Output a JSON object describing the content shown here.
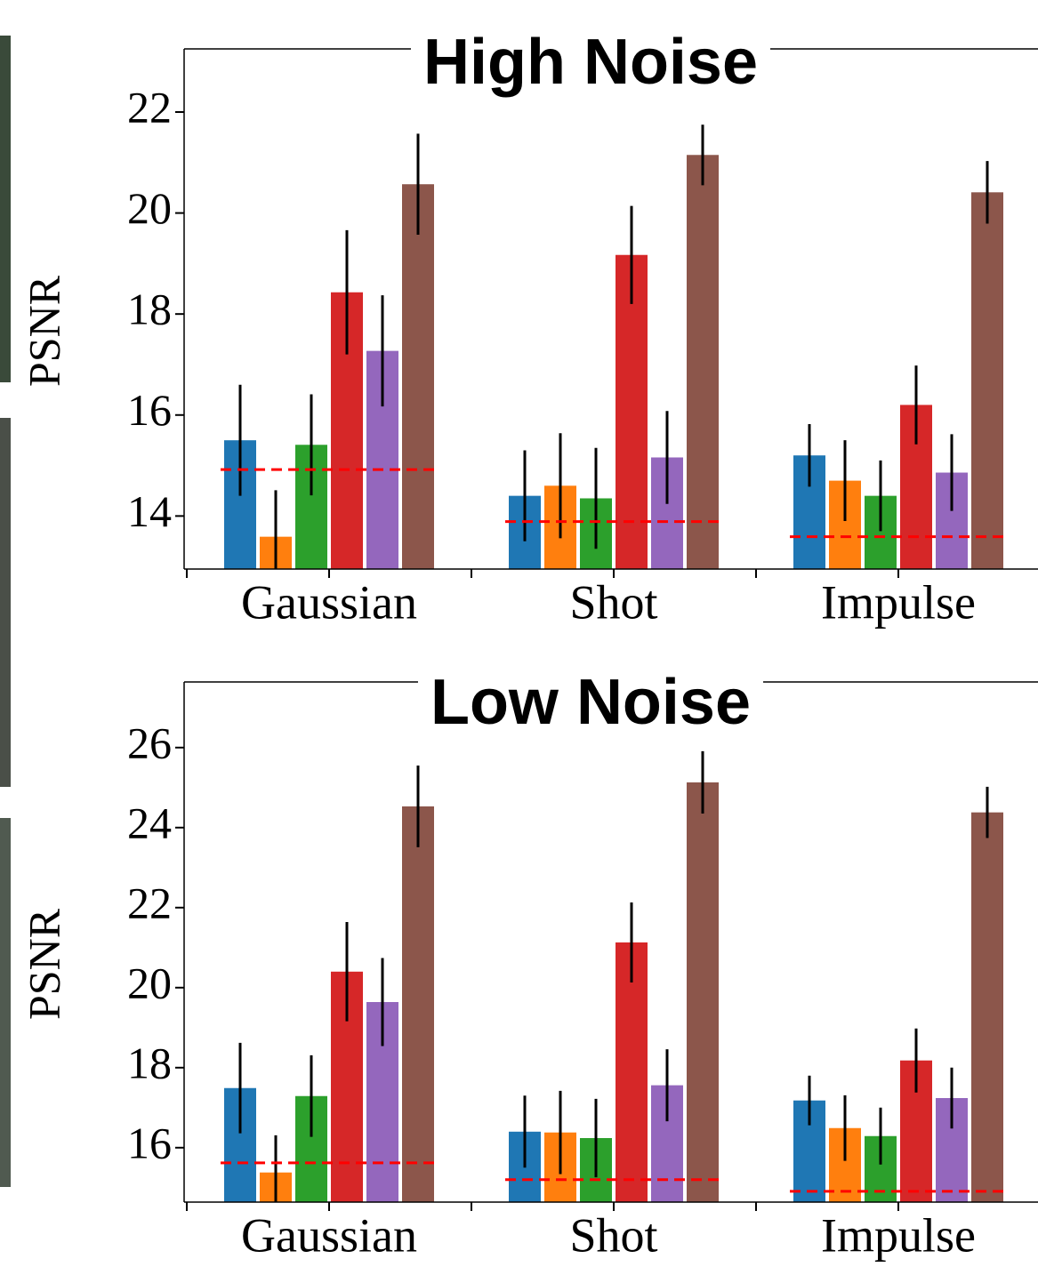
{
  "chart_data": [
    {
      "type": "bar",
      "title": "High Noise",
      "ylabel": "PSNR",
      "categories": [
        "Gaussian",
        "Shot",
        "Impulse"
      ],
      "series": [
        {
          "color": "#1f77b4",
          "values": [
            15.5,
            14.4,
            15.2
          ],
          "errors": [
            1.1,
            0.9,
            0.62
          ]
        },
        {
          "color": "#ff7f0e",
          "values": [
            13.59,
            14.6,
            14.7
          ],
          "errors": [
            0.92,
            1.04,
            0.8
          ]
        },
        {
          "color": "#2ca02c",
          "values": [
            15.41,
            14.35,
            14.4
          ],
          "errors": [
            1.0,
            1.0,
            0.7
          ]
        },
        {
          "color": "#d62728",
          "values": [
            18.43,
            19.17,
            16.2
          ],
          "errors": [
            1.23,
            0.97,
            0.78
          ]
        },
        {
          "color": "#9467bd",
          "values": [
            17.27,
            15.16,
            14.86
          ],
          "errors": [
            1.1,
            0.92,
            0.76
          ]
        },
        {
          "color": "#8c564b",
          "values": [
            20.57,
            21.15,
            20.41
          ],
          "errors": [
            1.0,
            0.6,
            0.62
          ]
        }
      ],
      "baseline": [
        14.92,
        13.89,
        13.59
      ],
      "baseline_color": "#ff0000",
      "ylim": [
        12.95,
        23.25
      ],
      "yticks": [
        14,
        16,
        18,
        20,
        22
      ]
    },
    {
      "type": "bar",
      "title": "Low Noise",
      "ylabel": "PSNR",
      "categories": [
        "Gaussian",
        "Shot",
        "Impulse"
      ],
      "series": [
        {
          "color": "#1f77b4",
          "values": [
            17.49,
            16.4,
            17.18
          ],
          "errors": [
            1.13,
            0.9,
            0.62
          ]
        },
        {
          "color": "#ff7f0e",
          "values": [
            15.38,
            16.38,
            16.49
          ],
          "errors": [
            0.93,
            1.04,
            0.82
          ]
        },
        {
          "color": "#2ca02c",
          "values": [
            17.29,
            16.24,
            16.29
          ],
          "errors": [
            1.02,
            0.98,
            0.71
          ]
        },
        {
          "color": "#d62728",
          "values": [
            20.4,
            21.13,
            18.18
          ],
          "errors": [
            1.24,
            1.0,
            0.8
          ]
        },
        {
          "color": "#9467bd",
          "values": [
            19.64,
            17.56,
            17.24
          ],
          "errors": [
            1.1,
            0.9,
            0.76
          ]
        },
        {
          "color": "#8c564b",
          "values": [
            24.53,
            25.13,
            24.38
          ],
          "errors": [
            1.02,
            0.78,
            0.64
          ]
        }
      ],
      "baseline": [
        15.62,
        15.2,
        14.91
      ],
      "baseline_color": "#ff0000",
      "ylim": [
        14.64,
        27.64
      ],
      "yticks": [
        16,
        18,
        20,
        22,
        24,
        26
      ]
    }
  ]
}
